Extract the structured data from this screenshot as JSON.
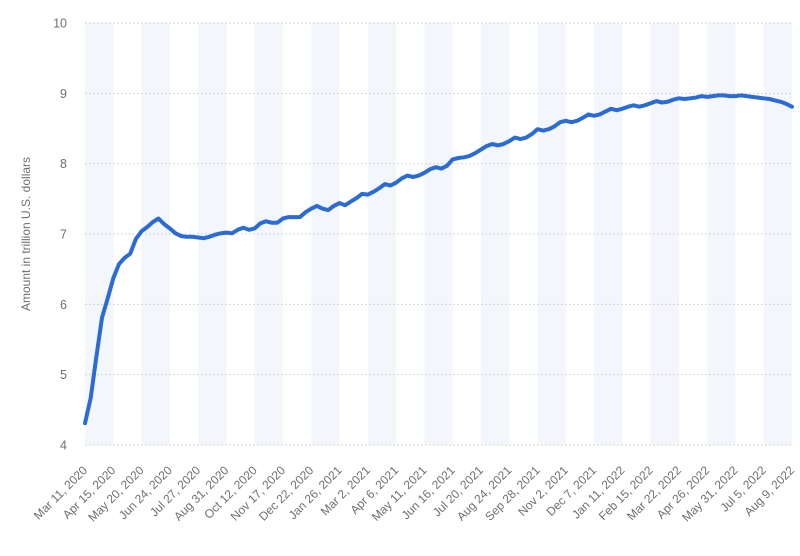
{
  "colors": {
    "line": "#2a6bd4",
    "band": "#f3f6fb",
    "grid": "#c7c9cc",
    "label": "#6f6f6f",
    "background": "#ffffff"
  },
  "chart_data": {
    "type": "line",
    "title": "",
    "xlabel": "",
    "ylabel": "Amount in trillion U.S. dollars",
    "ylim": [
      4,
      10
    ],
    "y_ticks": [
      4,
      5,
      6,
      7,
      8,
      9,
      10
    ],
    "grid": "horizontal-dotted",
    "legend": "none",
    "plot_background": "alternating-vertical-bands",
    "x_tick_labels": [
      "Mar 11, 2020",
      "Apr 15, 2020",
      "May 20, 2020",
      "Jun 24, 2020",
      "Jul 27, 2020",
      "Aug 31, 2020",
      "Oct 12, 2020",
      "Nov 17, 2020",
      "Dec 22, 2020",
      "Jan 26, 2021",
      "Mar 2, 2021",
      "Apr 6, 2021",
      "May 11, 2021",
      "Jun 16, 2021",
      "Jul 20, 2021",
      "Aug 24, 2021",
      "Sep 28, 2021",
      "Nov 2, 2021",
      "Dec 7, 2021",
      "Jan 11, 2022",
      "Feb 15, 2022",
      "Mar 22, 2022",
      "Apr 26, 2022",
      "May 31, 2022",
      "Jul 5, 2022",
      "Aug 9, 2022"
    ],
    "x_unit": "weekly dates from Mar 11, 2020 to Aug 9, 2022",
    "values": [
      4.31,
      4.67,
      5.25,
      5.81,
      6.08,
      6.37,
      6.57,
      6.66,
      6.72,
      6.93,
      7.04,
      7.1,
      7.17,
      7.22,
      7.14,
      7.08,
      7.01,
      6.97,
      6.96,
      6.96,
      6.95,
      6.94,
      6.96,
      6.99,
      7.01,
      7.02,
      7.01,
      7.06,
      7.09,
      7.06,
      7.08,
      7.15,
      7.18,
      7.16,
      7.16,
      7.22,
      7.24,
      7.24,
      7.24,
      7.31,
      7.36,
      7.4,
      7.36,
      7.34,
      7.4,
      7.44,
      7.41,
      7.46,
      7.51,
      7.57,
      7.56,
      7.6,
      7.65,
      7.71,
      7.69,
      7.73,
      7.79,
      7.83,
      7.81,
      7.83,
      7.87,
      7.92,
      7.95,
      7.93,
      7.97,
      8.06,
      8.08,
      8.09,
      8.11,
      8.15,
      8.2,
      8.25,
      8.28,
      8.26,
      8.28,
      8.32,
      8.37,
      8.35,
      8.37,
      8.42,
      8.49,
      8.47,
      8.49,
      8.53,
      8.59,
      8.61,
      8.59,
      8.61,
      8.65,
      8.7,
      8.68,
      8.7,
      8.74,
      8.78,
      8.76,
      8.78,
      8.81,
      8.83,
      8.81,
      8.83,
      8.86,
      8.89,
      8.87,
      8.88,
      8.91,
      8.93,
      8.92,
      8.93,
      8.94,
      8.96,
      8.95,
      8.96,
      8.97,
      8.97,
      8.96,
      8.96,
      8.97,
      8.96,
      8.95,
      8.94,
      8.93,
      8.92,
      8.9,
      8.88,
      8.85,
      8.81
    ]
  }
}
